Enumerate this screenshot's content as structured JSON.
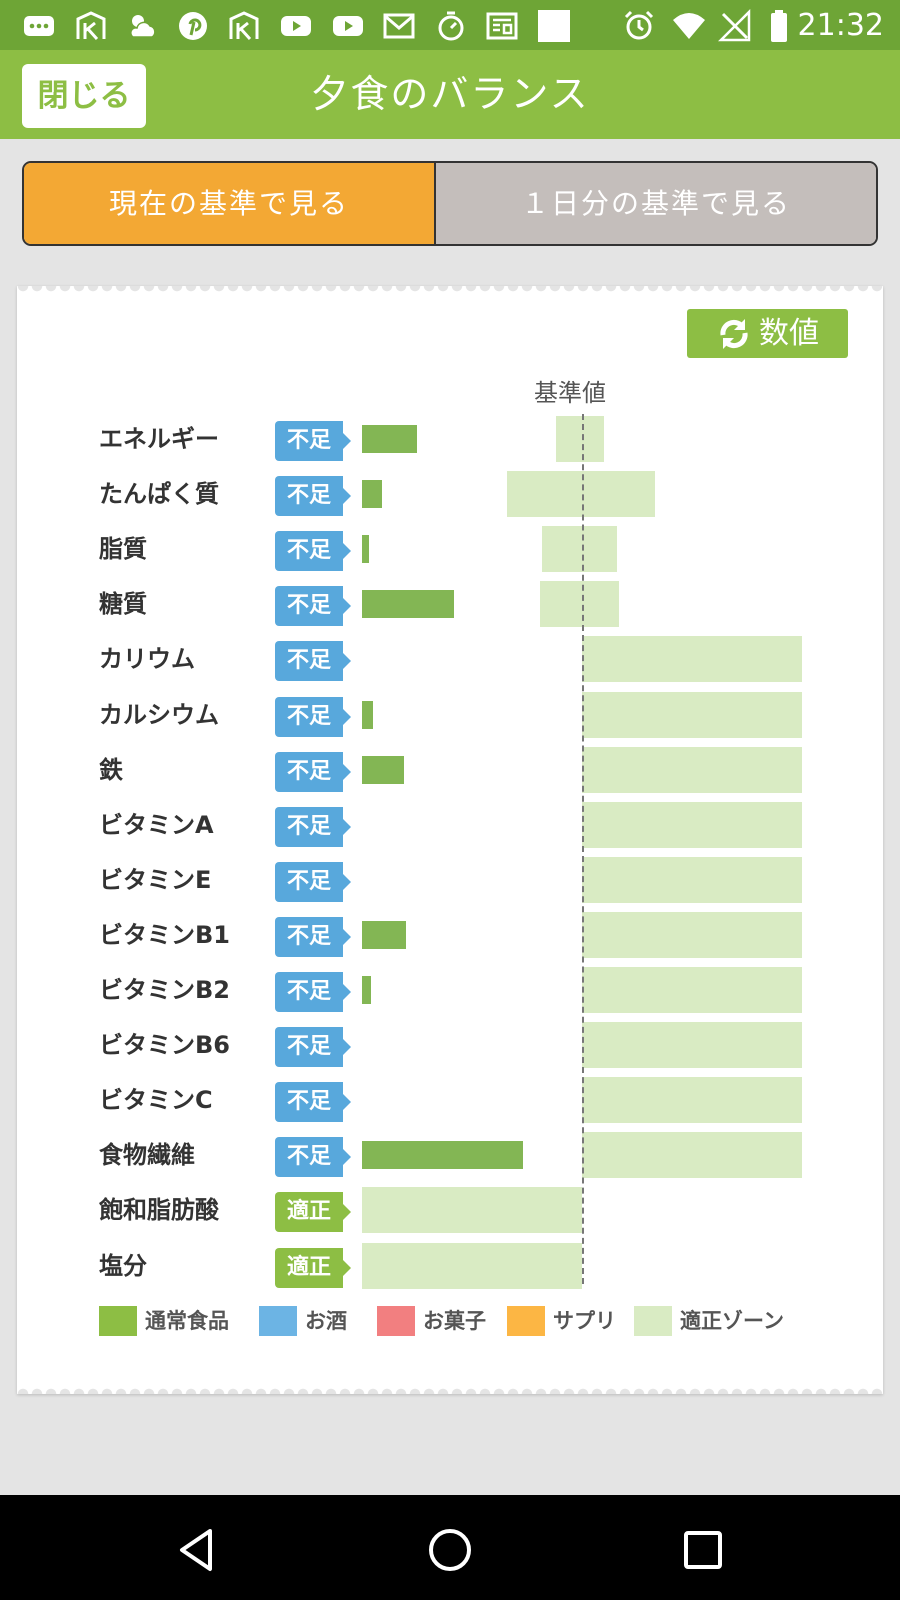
{
  "status_bar": {
    "time": "21:32",
    "icons": [
      "more-icon",
      "app-icon",
      "weather-icon",
      "pinterest-icon",
      "app-icon",
      "youtube-icon",
      "youtube-icon",
      "gmail-icon",
      "timer-icon",
      "news-icon",
      "square-icon",
      "alarm-icon",
      "wifi-icon",
      "no-signal-icon",
      "battery-icon"
    ]
  },
  "header": {
    "close_label": "閉じる",
    "title": "夕食のバランス"
  },
  "toggle": {
    "current_label": "現在の基準で見る",
    "daily_label": "１日分の基準で見る",
    "selected": "current"
  },
  "chart": {
    "value_button_label": "数値",
    "baseline_label": "基準値"
  },
  "legend": [
    {
      "label": "通常食品",
      "color": "#8dbe44"
    },
    {
      "label": "お酒",
      "color": "#6cb4e4"
    },
    {
      "label": "お菓子",
      "color": "#f27f80"
    },
    {
      "label": "サプリ",
      "color": "#fcb644"
    },
    {
      "label": "適正ゾーン",
      "color": "#d9ebc3"
    }
  ],
  "colors": {
    "status_bar": "#6ea536",
    "header": "#8dbe44",
    "toggle_selected": "#f3a834",
    "toggle_unselected": "#c4bebb",
    "badge_low": "#58a8dc",
    "badge_ok": "#8dbe44",
    "intake_bar": "#83b654",
    "zone": "#d9ebc3"
  },
  "chart_data": {
    "type": "bar",
    "orientation": "horizontal",
    "reference": "基準値",
    "note": "values as % of 基準値; zone = appropriate range [min,max] in % of 基準値",
    "rows": [
      {
        "label": "エネルギー",
        "status": "不足",
        "value": 25,
        "zone": [
          88,
          110
        ]
      },
      {
        "label": "たんぱく質",
        "status": "不足",
        "value": 9,
        "zone": [
          66,
          133
        ]
      },
      {
        "label": "脂質",
        "status": "不足",
        "value": 3,
        "zone": [
          82,
          116
        ]
      },
      {
        "label": "糖質",
        "status": "不足",
        "value": 42,
        "zone": [
          81,
          117
        ]
      },
      {
        "label": "カリウム",
        "status": "不足",
        "value": 0,
        "zone": [
          100,
          200
        ]
      },
      {
        "label": "カルシウム",
        "status": "不足",
        "value": 5,
        "zone": [
          100,
          200
        ]
      },
      {
        "label": "鉄",
        "status": "不足",
        "value": 19,
        "zone": [
          100,
          200
        ]
      },
      {
        "label": "ビタミンA",
        "status": "不足",
        "value": 0,
        "zone": [
          100,
          200
        ]
      },
      {
        "label": "ビタミンE",
        "status": "不足",
        "value": 0,
        "zone": [
          100,
          200
        ]
      },
      {
        "label": "ビタミンB1",
        "status": "不足",
        "value": 20,
        "zone": [
          100,
          200
        ]
      },
      {
        "label": "ビタミンB2",
        "status": "不足",
        "value": 4,
        "zone": [
          100,
          200
        ]
      },
      {
        "label": "ビタミンB6",
        "status": "不足",
        "value": 0,
        "zone": [
          100,
          200
        ]
      },
      {
        "label": "ビタミンC",
        "status": "不足",
        "value": 0,
        "zone": [
          100,
          200
        ]
      },
      {
        "label": "食物繊維",
        "status": "不足",
        "value": 73,
        "zone": [
          100,
          200
        ]
      },
      {
        "label": "飽和脂肪酸",
        "status": "適正",
        "value": null,
        "zone": [
          0,
          100
        ]
      },
      {
        "label": "塩分",
        "status": "適正",
        "value": null,
        "zone": [
          0,
          100
        ]
      }
    ]
  }
}
